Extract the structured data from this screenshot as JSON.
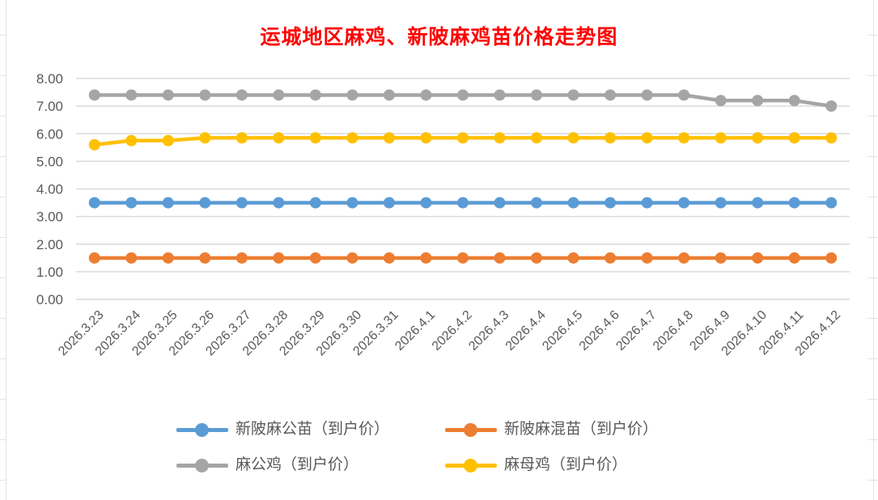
{
  "chart_data": {
    "type": "line",
    "title": "运城地区麻鸡、新陂麻鸡苗价格走势图",
    "title_color": "#FF0000",
    "xlabel": "",
    "ylabel": "",
    "ylim": [
      0,
      8
    ],
    "ytick_step": 1,
    "yticks": [
      "0.00",
      "1.00",
      "2.00",
      "3.00",
      "4.00",
      "5.00",
      "6.00",
      "7.00",
      "8.00"
    ],
    "grid": true,
    "grid_color": "#D9D9D9",
    "axis_text_color": "#595959",
    "legend_position": "bottom",
    "categories": [
      "2026.3.23",
      "2026.3.24",
      "2026.3.25",
      "2026.3.26",
      "2026.3.27",
      "2026.3.28",
      "2026.3.29",
      "2026.3.30",
      "2026.3.31",
      "2026.4.1",
      "2026.4.2",
      "2026.4.3",
      "2026.4.4",
      "2026.4.5",
      "2026.4.6",
      "2026.4.7",
      "2026.4.8",
      "2026.4.9",
      "2026.4.10",
      "2026.4.11",
      "2026.4.12"
    ],
    "series": [
      {
        "name": "新陂麻公苗（到户价）",
        "color": "#5B9BD5",
        "values": [
          3.5,
          3.5,
          3.5,
          3.5,
          3.5,
          3.5,
          3.5,
          3.5,
          3.5,
          3.5,
          3.5,
          3.5,
          3.5,
          3.5,
          3.5,
          3.5,
          3.5,
          3.5,
          3.5,
          3.5,
          3.5
        ]
      },
      {
        "name": "新陂麻混苗（到户价）",
        "color": "#ED7D31",
        "values": [
          1.5,
          1.5,
          1.5,
          1.5,
          1.5,
          1.5,
          1.5,
          1.5,
          1.5,
          1.5,
          1.5,
          1.5,
          1.5,
          1.5,
          1.5,
          1.5,
          1.5,
          1.5,
          1.5,
          1.5,
          1.5
        ]
      },
      {
        "name": "麻公鸡（到户价）",
        "color": "#A5A5A5",
        "values": [
          7.4,
          7.4,
          7.4,
          7.4,
          7.4,
          7.4,
          7.4,
          7.4,
          7.4,
          7.4,
          7.4,
          7.4,
          7.4,
          7.4,
          7.4,
          7.4,
          7.4,
          7.2,
          7.2,
          7.2,
          7.0
        ]
      },
      {
        "name": "麻母鸡（到户价）",
        "color": "#FFC000",
        "values": [
          5.6,
          5.75,
          5.75,
          5.85,
          5.85,
          5.85,
          5.85,
          5.85,
          5.85,
          5.85,
          5.85,
          5.85,
          5.85,
          5.85,
          5.85,
          5.85,
          5.85,
          5.85,
          5.85,
          5.85,
          5.85
        ]
      }
    ]
  }
}
